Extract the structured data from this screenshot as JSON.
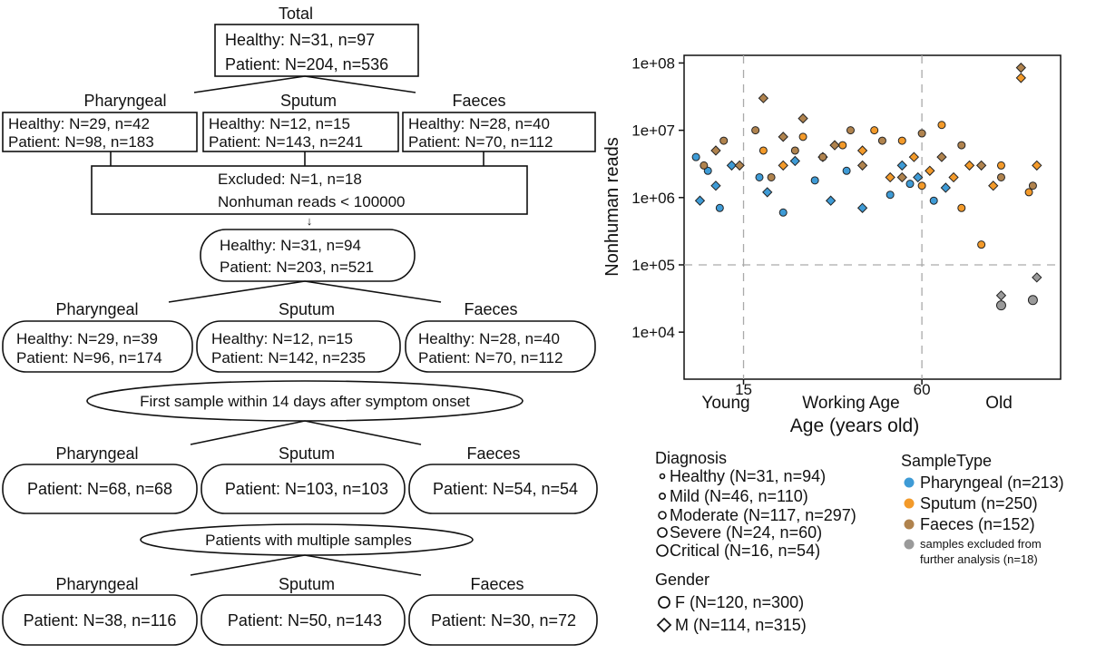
{
  "flowchart": {
    "total": {
      "title": "Total",
      "line1": "Healthy: N=31, n=97",
      "line2": "Patient: N=204, n=536"
    },
    "level1": [
      {
        "title": "Pharyngeal",
        "line1": "Healthy: N=29, n=42",
        "line2": "Patient: N=98, n=183"
      },
      {
        "title": "Sputum",
        "line1": "Healthy: N=12, n=15",
        "line2": "Patient: N=143, n=241"
      },
      {
        "title": "Faeces",
        "line1": "Healthy: N=28, n=40",
        "line2": "Patient: N=70, n=112"
      }
    ],
    "excluded": {
      "line1": "Excluded: N=1, n=18",
      "line2": "Nonhuman reads < 100000"
    },
    "arrow_glyph": "↓",
    "after": {
      "line1": "Healthy: N=31, n=94",
      "line2": "Patient: N=203, n=521"
    },
    "level2": [
      {
        "title": "Pharyngeal",
        "line1": "Healthy: N=29, n=39",
        "line2": "Patient: N=96, n=174"
      },
      {
        "title": "Sputum",
        "line1": "Healthy: N=12, n=15",
        "line2": "Patient: N=142, n=235"
      },
      {
        "title": "Faeces",
        "line1": "Healthy: N=28, n=40",
        "line2": "Patient: N=70, n=112"
      }
    ],
    "filter1": "First sample within 14 days after symptom onset",
    "level3": [
      {
        "title": "Pharyngeal",
        "line1": "Patient: N=68, n=68"
      },
      {
        "title": "Sputum",
        "line1": "Patient: N=103, n=103"
      },
      {
        "title": "Faeces",
        "line1": "Patient: N=54, n=54"
      }
    ],
    "filter2": "Patients with multiple samples",
    "level4": [
      {
        "title": "Pharyngeal",
        "line1": "Patient: N=38, n=116"
      },
      {
        "title": "Sputum",
        "line1": "Patient: N=50, n=143"
      },
      {
        "title": "Faeces",
        "line1": "Patient: N=30, n=72"
      }
    ]
  },
  "chart_data": {
    "type": "scatter",
    "title": "",
    "xlabel": "Age (years old)",
    "ylabel": "Nonhuman reads",
    "y_scale": "log10",
    "ylim": [
      2000,
      130000000
    ],
    "xlim": [
      0,
      95
    ],
    "y_ticks": [
      "1e+04",
      "1e+05",
      "1e+06",
      "1e+07",
      "1e+08"
    ],
    "x_ticks": [
      "15",
      "60"
    ],
    "age_groups": [
      "Young",
      "Working Age",
      "Old"
    ],
    "reference_lines": {
      "vertical_x": [
        15,
        60
      ],
      "horizontal_y": 100000
    },
    "grid": false,
    "colors": {
      "Pharyngeal": "#3e9bd6",
      "Sputum": "#f39a2a",
      "Faeces": "#b0834e",
      "excluded": "#9a9a9a"
    },
    "legend": {
      "diagnosis": {
        "title": "Diagnosis",
        "items": [
          "Healthy (N=31, n=94)",
          "Mild (N=46, n=110)",
          "Moderate (N=117, n=297)",
          "Severe (N=24, n=60)",
          "Critical (N=16, n=54)"
        ]
      },
      "gender": {
        "title": "Gender",
        "items": [
          "F (N=120, n=300)",
          "M (N=114, n=315)"
        ]
      },
      "sample_type": {
        "title": "SampleType",
        "items": [
          "Pharyngeal (n=213)",
          "Sputum (n=250)",
          "Faeces (n=152)"
        ],
        "excluded_line1": "samples excluded from",
        "excluded_line2": "further analysis (n=18)"
      }
    },
    "series": [
      {
        "name": "Pharyngeal",
        "x": [
          3,
          4,
          6,
          8,
          9,
          12,
          19,
          21,
          25,
          28,
          33,
          37,
          41,
          45,
          52,
          55,
          57,
          59,
          63,
          66
        ],
        "y": [
          4000000,
          900000,
          2500000,
          1500000,
          700000,
          3000000,
          2000000,
          1200000,
          600000,
          3500000,
          1800000,
          900000,
          2500000,
          700000,
          1100000,
          3000000,
          1600000,
          2000000,
          900000,
          1400000
        ]
      },
      {
        "name": "Sputum",
        "x": [
          20,
          25,
          30,
          35,
          40,
          45,
          48,
          52,
          55,
          58,
          60,
          62,
          65,
          68,
          70,
          72,
          75,
          78,
          80,
          85,
          87,
          89
        ],
        "y": [
          5000000,
          3000000,
          8000000,
          4000000,
          6000000,
          5000000,
          10000000,
          2000000,
          7000000,
          4000000,
          1500000,
          2500000,
          12000000,
          2000000,
          700000,
          3000000,
          200000,
          1500000,
          3000000,
          60000000,
          1200000,
          3000000
        ]
      },
      {
        "name": "Faeces",
        "x": [
          5,
          8,
          10,
          14,
          18,
          20,
          22,
          25,
          28,
          30,
          35,
          38,
          42,
          45,
          50,
          55,
          60,
          65,
          70,
          75,
          80,
          85,
          88
        ],
        "y": [
          3000000,
          5000000,
          7000000,
          3000000,
          10000000,
          30000000,
          2000000,
          8000000,
          5000000,
          15000000,
          4000000,
          6000000,
          10000000,
          3000000,
          7000000,
          2000000,
          9000000,
          4000000,
          6000000,
          3000000,
          2000000,
          85000000,
          1500000
        ]
      },
      {
        "name": "excluded",
        "x": [
          80,
          80,
          88,
          89
        ],
        "y": [
          25000,
          35000,
          30000,
          65000
        ]
      }
    ]
  }
}
